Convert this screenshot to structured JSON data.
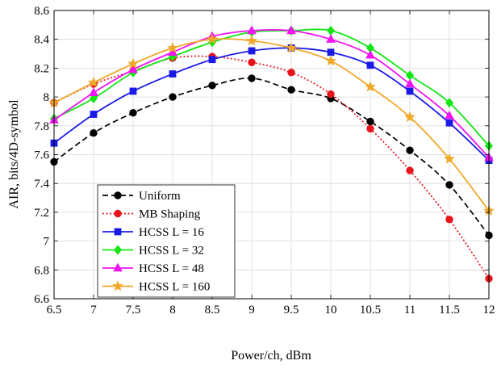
{
  "chart_data": {
    "type": "line",
    "xlabel": "Power/ch, dBm",
    "ylabel": "AIR, bits/4D-symbol",
    "xlim": [
      6.5,
      12
    ],
    "ylim": [
      6.6,
      8.6
    ],
    "x_ticks": [
      "6.5",
      "7",
      "7.5",
      "8",
      "8.5",
      "9",
      "9.5",
      "10",
      "10.5",
      "11",
      "11.5",
      "12"
    ],
    "y_ticks": [
      "6.6",
      "6.8",
      "7",
      "7.2",
      "7.4",
      "7.6",
      "7.8",
      "8",
      "8.2",
      "8.4",
      "8.6"
    ],
    "grid": true,
    "legend_position": "bottom-left",
    "x": [
      6.5,
      7,
      7.5,
      8,
      8.5,
      9,
      9.5,
      10,
      10.5,
      11,
      11.5,
      12
    ],
    "series": [
      {
        "name": "Uniform",
        "color": "#000000",
        "line": "dashed",
        "marker": "circle",
        "values": [
          7.55,
          7.75,
          7.89,
          8.0,
          8.08,
          8.13,
          8.05,
          7.99,
          7.83,
          7.63,
          7.39,
          7.04
        ]
      },
      {
        "name": "MB Shaping",
        "color": "#e8141c",
        "line": "dotted",
        "marker": "circle",
        "values": [
          7.96,
          8.09,
          8.18,
          8.27,
          8.28,
          8.24,
          8.17,
          8.02,
          7.78,
          7.49,
          7.15,
          6.74
        ]
      },
      {
        "name": "HCSS L = 16",
        "color": "#1a1ae6",
        "line": "solid",
        "marker": "square",
        "values": [
          7.68,
          7.88,
          8.04,
          8.16,
          8.26,
          8.32,
          8.34,
          8.31,
          8.22,
          8.04,
          7.82,
          7.56
        ]
      },
      {
        "name": "HCSS L = 32",
        "color": "#14e614",
        "line": "solid",
        "marker": "diamond",
        "values": [
          7.85,
          7.99,
          8.17,
          8.28,
          8.38,
          8.45,
          8.46,
          8.46,
          8.34,
          8.15,
          7.96,
          7.66
        ]
      },
      {
        "name": "HCSS L = 48",
        "color": "#f014f0",
        "line": "solid",
        "marker": "triangle",
        "values": [
          7.84,
          8.03,
          8.19,
          8.31,
          8.42,
          8.46,
          8.46,
          8.4,
          8.29,
          8.09,
          7.87,
          7.58
        ]
      },
      {
        "name": "HCSS L = 160",
        "color": "#f0a82a",
        "line": "solid",
        "marker": "star",
        "values": [
          7.96,
          8.1,
          8.23,
          8.34,
          8.4,
          8.39,
          8.34,
          8.25,
          8.07,
          7.86,
          7.57,
          7.21
        ]
      }
    ]
  }
}
